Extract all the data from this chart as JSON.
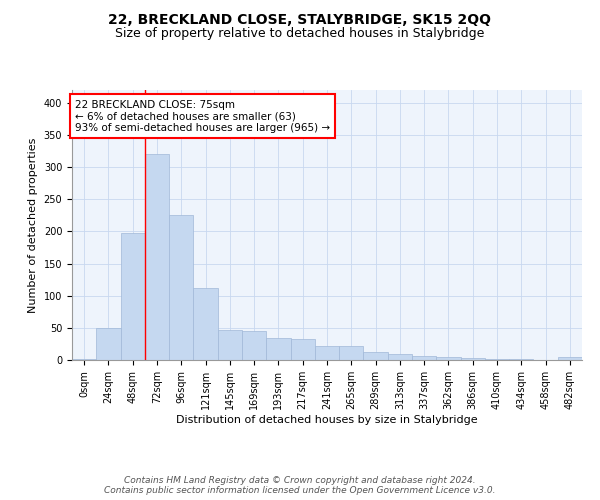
{
  "title": "22, BRECKLAND CLOSE, STALYBRIDGE, SK15 2QQ",
  "subtitle": "Size of property relative to detached houses in Stalybridge",
  "xlabel": "Distribution of detached houses by size in Stalybridge",
  "ylabel": "Number of detached properties",
  "bar_color": "#c5d8f0",
  "bar_edge_color": "#a0b8d8",
  "grid_color": "#c8d8f0",
  "background_color": "#eef4fc",
  "x_labels": [
    "0sqm",
    "24sqm",
    "48sqm",
    "72sqm",
    "96sqm",
    "121sqm",
    "145sqm",
    "169sqm",
    "193sqm",
    "217sqm",
    "241sqm",
    "265sqm",
    "289sqm",
    "313sqm",
    "337sqm",
    "362sqm",
    "386sqm",
    "410sqm",
    "434sqm",
    "458sqm",
    "482sqm"
  ],
  "bar_values": [
    1,
    50,
    197,
    320,
    225,
    112,
    46,
    45,
    34,
    33,
    22,
    22,
    13,
    9,
    6,
    5,
    3,
    2,
    1,
    0,
    4
  ],
  "red_line_x": 3,
  "annotation_text": "22 BRECKLAND CLOSE: 75sqm\n← 6% of detached houses are smaller (63)\n93% of semi-detached houses are larger (965) →",
  "annotation_box_color": "white",
  "annotation_box_edge_color": "red",
  "ylim": [
    0,
    420
  ],
  "yticks": [
    0,
    50,
    100,
    150,
    200,
    250,
    300,
    350,
    400
  ],
  "footer_text": "Contains HM Land Registry data © Crown copyright and database right 2024.\nContains public sector information licensed under the Open Government Licence v3.0.",
  "title_fontsize": 10,
  "subtitle_fontsize": 9,
  "axis_label_fontsize": 8,
  "tick_fontsize": 7,
  "annotation_fontsize": 7.5,
  "footer_fontsize": 6.5
}
